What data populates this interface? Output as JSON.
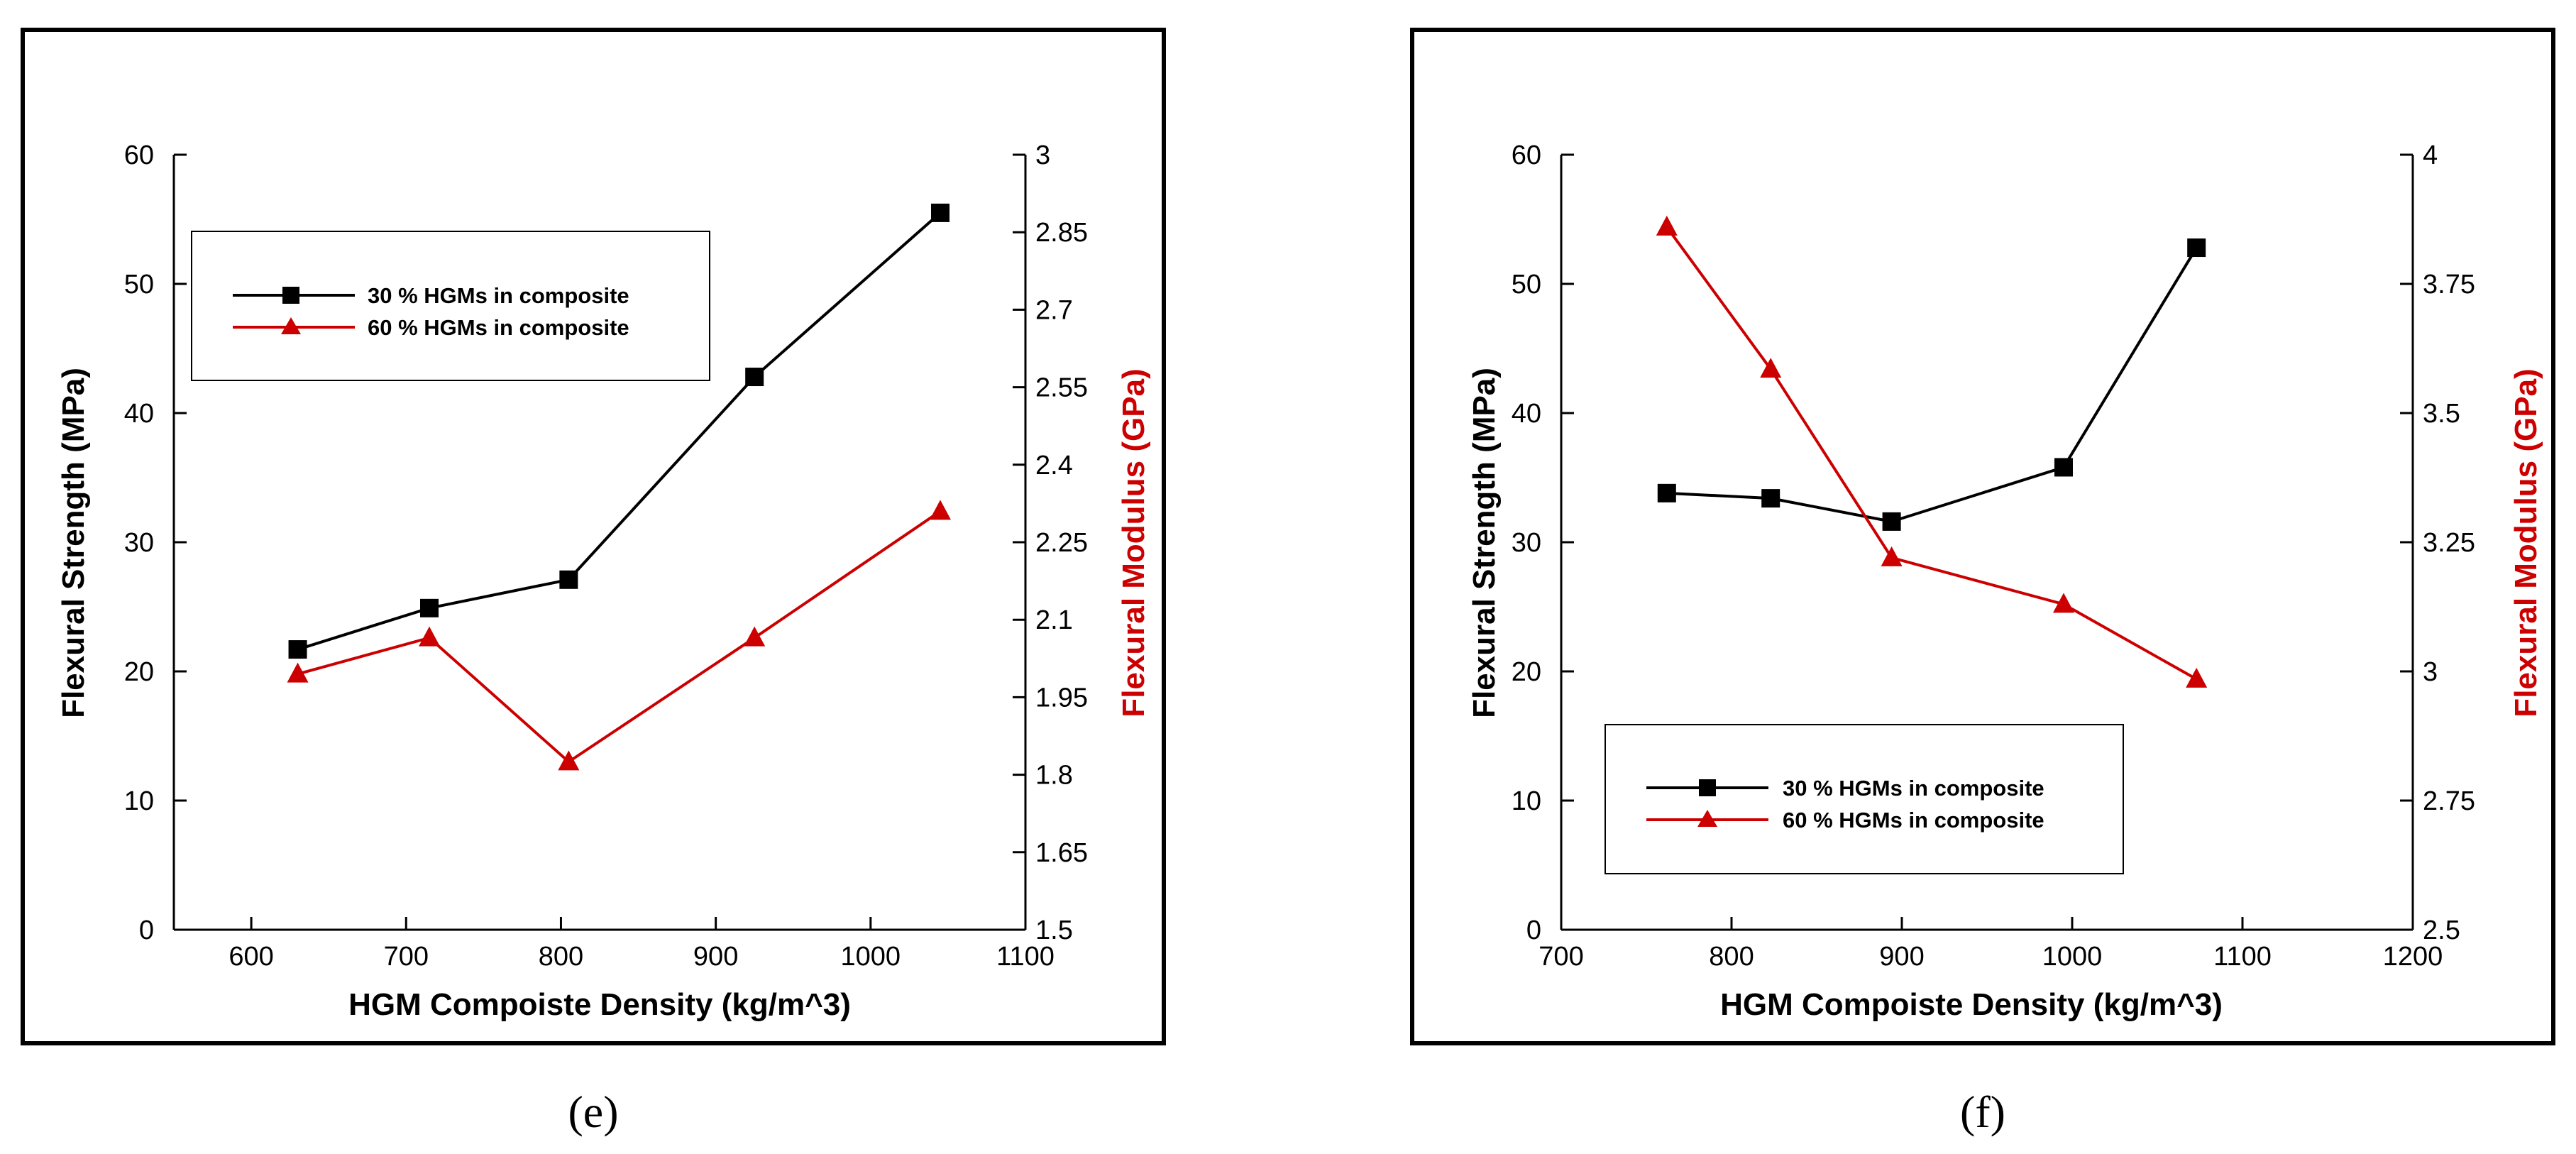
{
  "colors": {
    "series1": "#000000",
    "series2": "#cc0000",
    "right_axis": "#cc0000",
    "frame": "#000000"
  },
  "chart_data": [
    {
      "type": "line",
      "panel_label": "e",
      "caption": "(e)",
      "xlabel": "HGM Compoiste Density (kg/m^3)",
      "ylabel": "Flexural Strength (MPa)",
      "y2label": "Flexural Modulus (GPa)",
      "xlim": [
        550,
        1100
      ],
      "ylim": [
        0,
        60
      ],
      "y2lim": [
        1.5,
        3
      ],
      "xticks": [
        600,
        700,
        800,
        900,
        1000,
        1100
      ],
      "yticks": [
        0,
        10,
        20,
        30,
        40,
        50,
        60
      ],
      "y2ticks": [
        "1.5",
        "1.65",
        "1.8",
        "1.95",
        "2.1",
        "2.25",
        "2.4",
        "2.55",
        "2.7",
        "2.85",
        "3"
      ],
      "legend_position": "top-left",
      "series": [
        {
          "name": "30 % HGMs in composite",
          "axis": "left",
          "marker": "square",
          "color": "#000000",
          "x": [
            630,
            715,
            805,
            925,
            1045
          ],
          "y": [
            21.7,
            24.9,
            27.1,
            42.8,
            55.5
          ]
        },
        {
          "name": "60 % HGMs in composite",
          "axis": "right",
          "marker": "triangle",
          "color": "#cc0000",
          "x": [
            630,
            715,
            805,
            925,
            1045
          ],
          "y": [
            1.995,
            2.065,
            1.825,
            2.065,
            2.31
          ]
        }
      ]
    },
    {
      "type": "line",
      "panel_label": "f",
      "caption": "(f)",
      "xlabel": "HGM Compoiste Density (kg/m^3)",
      "ylabel": "Flexural Strength (MPa)",
      "y2label": "Flexural Modulus (GPa)",
      "xlim": [
        700,
        1200
      ],
      "ylim": [
        0,
        60
      ],
      "y2lim": [
        2.5,
        4
      ],
      "xticks": [
        700,
        800,
        900,
        1000,
        1100,
        1200
      ],
      "yticks": [
        0,
        10,
        20,
        30,
        40,
        50,
        60
      ],
      "y2ticks": [
        "2.5",
        "2.75",
        "3",
        "3.25",
        "3.5",
        "3.75",
        "4"
      ],
      "legend_position": "bottom-left",
      "series": [
        {
          "name": "30 % HGMs in composite",
          "axis": "left",
          "marker": "square",
          "color": "#000000",
          "x": [
            762,
            823,
            894,
            995,
            1073
          ],
          "y": [
            33.8,
            33.4,
            31.6,
            35.8,
            52.8
          ]
        },
        {
          "name": "60 % HGMs in composite",
          "axis": "right",
          "marker": "triangle",
          "color": "#cc0000",
          "x": [
            762,
            823,
            894,
            995,
            1073
          ],
          "y": [
            3.86,
            3.585,
            3.22,
            3.13,
            2.985
          ]
        }
      ]
    }
  ]
}
